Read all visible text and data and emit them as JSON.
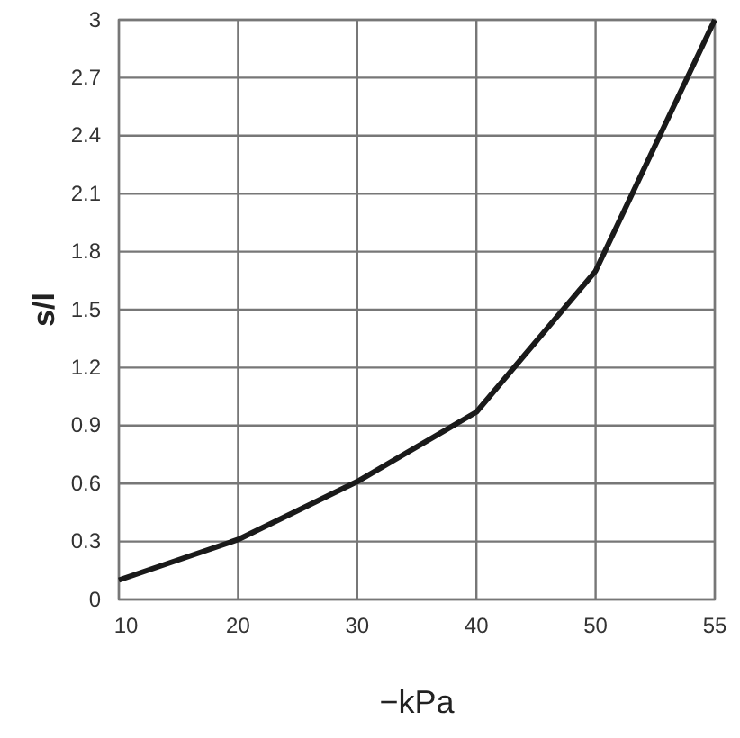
{
  "chart_data": {
    "type": "line",
    "xlabel": "−kPa",
    "ylabel": "s/l",
    "categories": [
      "10",
      "20",
      "30",
      "40",
      "50",
      "55"
    ],
    "series": [
      {
        "color": "#1a1a1a",
        "values": [
          0.1,
          0.31,
          0.61,
          0.97,
          1.7,
          3.0
        ]
      }
    ],
    "ylim": [
      0,
      3
    ],
    "yticks": [
      0,
      0.3,
      0.6,
      0.9,
      1.2,
      1.5,
      1.8,
      2.1,
      2.4,
      2.7,
      3
    ],
    "grid": true,
    "marker": "none",
    "line_style": "solid"
  }
}
